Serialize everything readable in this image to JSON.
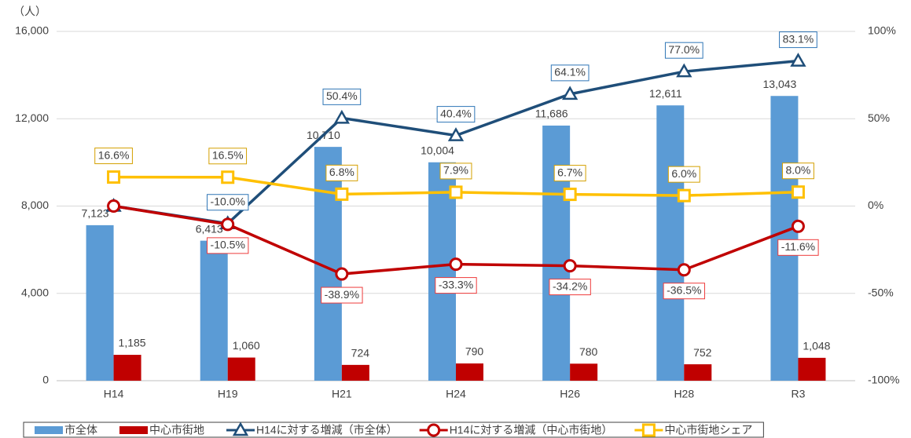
{
  "chart_data": {
    "type": "bar-line",
    "y_label": "（人）",
    "categories": [
      "H14",
      "H19",
      "H21",
      "H24",
      "H26",
      "H28",
      "R3"
    ],
    "series": [
      {
        "name": "市全体",
        "type": "bar",
        "color": "#5b9bd5",
        "values": [
          7123,
          6413,
          10710,
          10004,
          11686,
          12611,
          13043
        ],
        "value_labels": [
          "7,123",
          "6,413",
          "10,710",
          "10,004",
          "11,686",
          "12,611",
          "13,043"
        ]
      },
      {
        "name": "中心市街地",
        "type": "bar",
        "color": "#c00000",
        "values": [
          1185,
          1060,
          724,
          790,
          780,
          752,
          1048
        ],
        "value_labels": [
          "1,185",
          "1,060",
          "724",
          "790",
          "780",
          "752",
          "1,048"
        ]
      },
      {
        "name": "H14に対する増減（市全体）",
        "type": "line",
        "axis": "y2",
        "marker": "triangle",
        "label_position": "above",
        "color": "#1f4e79",
        "label_color": "#2e75b6",
        "values": [
          0,
          -10.0,
          50.4,
          40.4,
          64.1,
          77.0,
          83.1
        ],
        "value_labels": [
          null,
          "-10.0%",
          "50.4%",
          "40.4%",
          "64.1%",
          "77.0%",
          "83.1%"
        ]
      },
      {
        "name": "H14に対する増減（中心市街地）",
        "type": "line",
        "axis": "y2",
        "marker": "circle",
        "label_position": "below",
        "color": "#c00000",
        "label_color": "#ee3b3b",
        "values": [
          0,
          -10.5,
          -38.9,
          -33.3,
          -34.2,
          -36.5,
          -11.6
        ],
        "value_labels": [
          null,
          "-10.5%",
          "-38.9%",
          "-33.3%",
          "-34.2%",
          "-36.5%",
          "-11.6%"
        ]
      },
      {
        "name": "中心市街地シェア",
        "type": "line",
        "axis": "y2",
        "marker": "square",
        "label_position": "above",
        "color": "#ffc000",
        "label_color": "#d4a000",
        "values": [
          16.6,
          16.5,
          6.8,
          7.9,
          6.7,
          6.0,
          8.0
        ],
        "value_labels": [
          "16.6%",
          "16.5%",
          "6.8%",
          "7.9%",
          "6.7%",
          "6.0%",
          "8.0%"
        ]
      }
    ],
    "ylim": [
      0,
      16000
    ],
    "yticks": [
      0,
      {
        "value": 4000,
        "label": "4,000"
      },
      {
        "value": 8000,
        "label": "8,000"
      },
      {
        "value": 12000,
        "label": "12,000"
      },
      {
        "value": 16000,
        "label": "16,000"
      }
    ],
    "y2lim": [
      -100,
      100
    ],
    "y2ticks": [
      {
        "value": -100,
        "label": "-100%"
      },
      {
        "value": -50,
        "label": "-50%"
      },
      {
        "value": 0,
        "label": "0%"
      },
      {
        "value": 50,
        "label": "50%"
      },
      {
        "value": 100,
        "label": "100%"
      }
    ],
    "grid": true,
    "legend": "bottom"
  }
}
